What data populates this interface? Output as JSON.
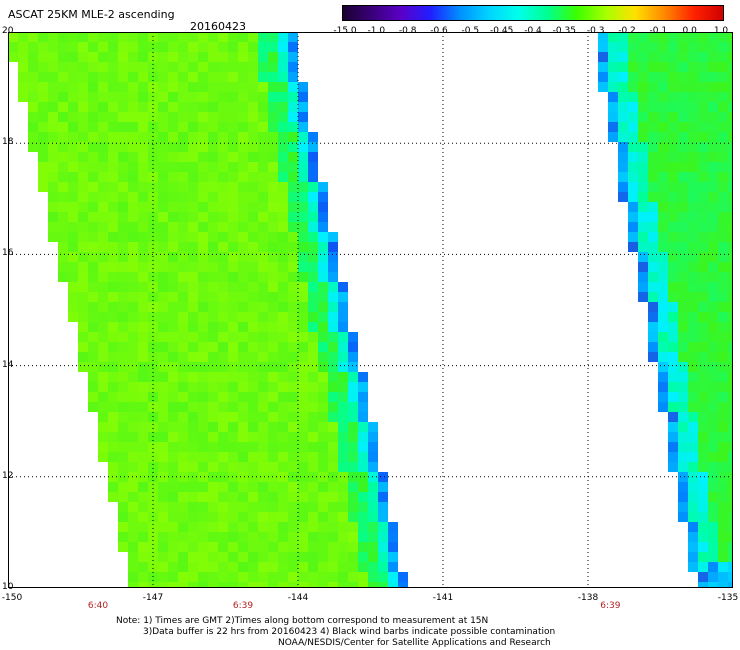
{
  "header": {
    "title": "ASCAT 25KM MLE-2 ascending",
    "date": "20160423"
  },
  "colorbar": {
    "labels": [
      "-15.0",
      "-1.0",
      "-0.8",
      "-0.6",
      "-0.5",
      "-0.45",
      "-0.4",
      "-0.35",
      "-0.3",
      "-0.2",
      "-0.1",
      "0.0",
      "1.0"
    ],
    "colors": [
      "#1a0030",
      "#3a007a",
      "#5a00c8",
      "#1f1fff",
      "#0090ff",
      "#00d4ff",
      "#00ffea",
      "#00ff90",
      "#3cff00",
      "#a8ff00",
      "#ffe000",
      "#ff8800",
      "#ff2200",
      "#d00000"
    ]
  },
  "map": {
    "lon_range": [
      -150,
      -135
    ],
    "lat_range": [
      10,
      20
    ],
    "lat_labels": [
      "20",
      "18",
      "16",
      "14",
      "12",
      "10"
    ],
    "lon_labels": [
      "-150",
      "-147",
      "-144",
      "-141",
      "-138",
      "-135"
    ],
    "time_labels": [
      {
        "lon": -147,
        "text": "6:40"
      },
      {
        "lon": -144,
        "text": "6:39"
      },
      {
        "lon": -136.4,
        "text": "6:39"
      }
    ],
    "grid": true
  },
  "notes": {
    "line1": "Note: 1) Times are GMT 2)Times along bottom correspond to measurement at 15N",
    "line2": "3)Data buffer is 22 hrs from 20160423 4) Black wind barbs indicate possible contamination",
    "line3": "NOAA/NESDIS/Center for Satellite Applications and Research"
  }
}
